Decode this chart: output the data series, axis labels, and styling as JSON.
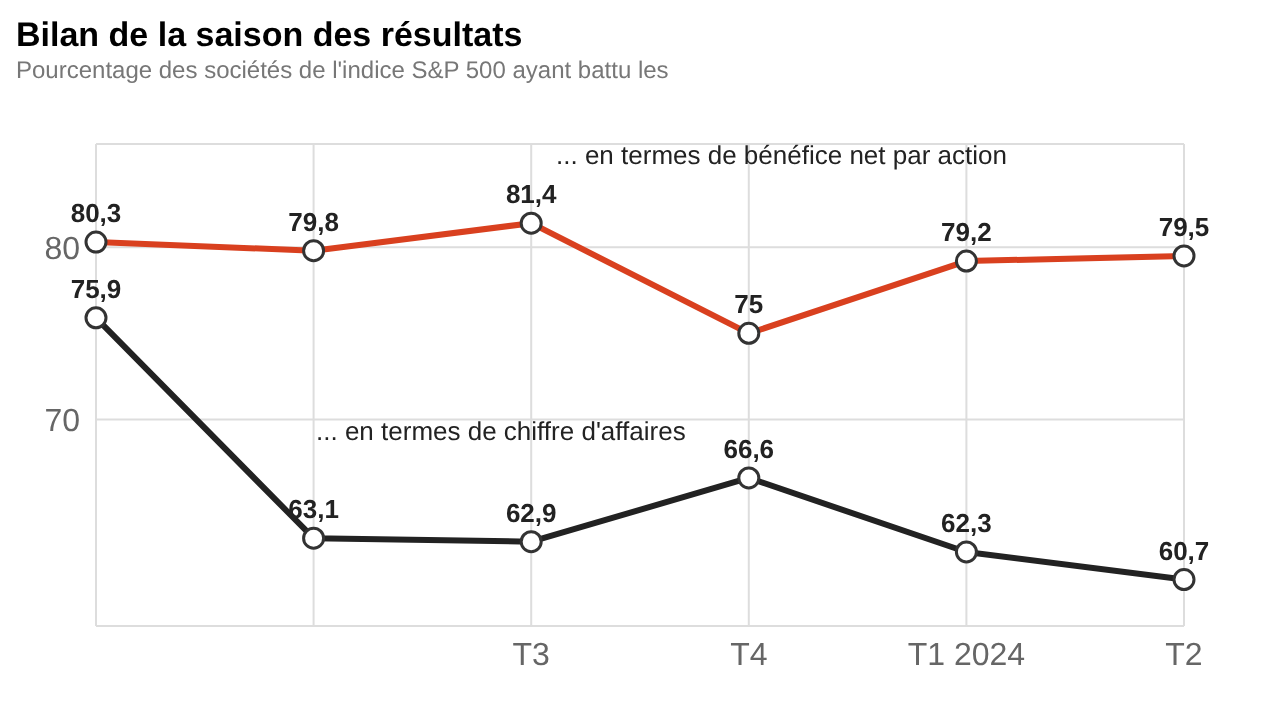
{
  "chart_data": {
    "type": "line",
    "title": "Bilan de la saison des résultats",
    "subtitle": "Pourcentage des sociétés de l'indice S&P 500 ayant battu les",
    "categories": [
      null,
      null,
      "T3",
      "T4",
      "T1 2024",
      "T2"
    ],
    "series": [
      {
        "name": "... en termes de bénéfice net par action",
        "color": "#d9401f",
        "values": [
          80.3,
          79.8,
          81.4,
          75,
          79.2,
          79.5
        ],
        "value_labels": [
          "80,3",
          "79,8",
          "81,4",
          "75",
          "79,2",
          "79,5"
        ]
      },
      {
        "name": "... en termes de chiffre d'affaires",
        "color": "#222222",
        "values": [
          75.9,
          63.1,
          62.9,
          66.6,
          62.3,
          60.7
        ],
        "value_labels": [
          "75,9",
          "63,1",
          "62,9",
          "66,6",
          "62,3",
          "60,7"
        ]
      }
    ],
    "ylim": [
      58,
      86
    ],
    "yticks": [
      70,
      80
    ],
    "grid": true,
    "marker": "circle",
    "legend": false
  }
}
